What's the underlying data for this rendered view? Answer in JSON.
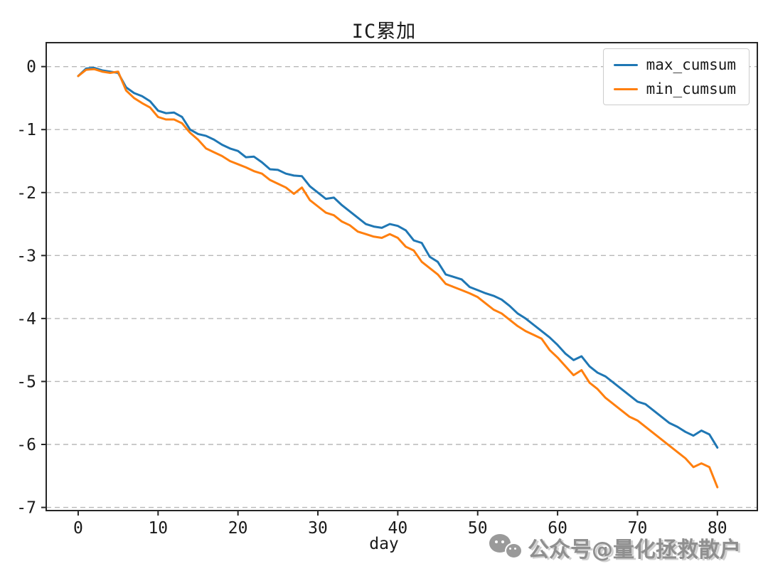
{
  "page": {
    "background": "#ffffff"
  },
  "watermark": {
    "icon": "wechat-icon",
    "text": "公众号@量化拯救散户",
    "color": "#8f8f8f"
  },
  "chart_data": {
    "type": "line",
    "title": "IC累加",
    "xlabel": "day",
    "ylabel": "",
    "grid": "horizontal-dashed",
    "grid_color": "#b8b8b8",
    "axis_color": "#262626",
    "xlim": [
      -4,
      85
    ],
    "ylim": [
      -7.05,
      0.38
    ],
    "x_ticks": [
      0,
      10,
      20,
      30,
      40,
      50,
      60,
      70,
      80
    ],
    "y_ticks": [
      0,
      -1,
      -2,
      -3,
      -4,
      -5,
      -6,
      -7
    ],
    "legend": {
      "position": "top-right",
      "entries": [
        {
          "label": "max_cumsum",
          "color": "#1f77b4"
        },
        {
          "label": "min_cumsum",
          "color": "#ff7f0e"
        }
      ]
    },
    "x": [
      0,
      1,
      2,
      3,
      4,
      5,
      6,
      7,
      8,
      9,
      10,
      11,
      12,
      13,
      14,
      15,
      16,
      17,
      18,
      19,
      20,
      21,
      22,
      23,
      24,
      25,
      26,
      27,
      28,
      29,
      30,
      31,
      32,
      33,
      34,
      35,
      36,
      37,
      38,
      39,
      40,
      41,
      42,
      43,
      44,
      45,
      46,
      47,
      48,
      49,
      50,
      51,
      52,
      53,
      54,
      55,
      56,
      57,
      58,
      59,
      60,
      61,
      62,
      63,
      64,
      65,
      66,
      67,
      68,
      69,
      70,
      71,
      72,
      73,
      74,
      75,
      76,
      77,
      78,
      79,
      80
    ],
    "series": [
      {
        "name": "max_cumsum",
        "color": "#1f77b4",
        "values": [
          -0.15,
          -0.03,
          -0.02,
          -0.06,
          -0.08,
          -0.1,
          -0.33,
          -0.42,
          -0.47,
          -0.55,
          -0.7,
          -0.74,
          -0.73,
          -0.8,
          -1.0,
          -1.07,
          -1.1,
          -1.16,
          -1.24,
          -1.3,
          -1.34,
          -1.44,
          -1.43,
          -1.52,
          -1.63,
          -1.64,
          -1.7,
          -1.73,
          -1.74,
          -1.9,
          -2.0,
          -2.1,
          -2.08,
          -2.2,
          -2.3,
          -2.4,
          -2.5,
          -2.54,
          -2.56,
          -2.5,
          -2.53,
          -2.6,
          -2.76,
          -2.8,
          -3.02,
          -3.1,
          -3.3,
          -3.34,
          -3.38,
          -3.5,
          -3.55,
          -3.6,
          -3.64,
          -3.7,
          -3.8,
          -3.92,
          -4.0,
          -4.1,
          -4.2,
          -4.3,
          -4.42,
          -4.56,
          -4.66,
          -4.6,
          -4.76,
          -4.86,
          -4.92,
          -5.02,
          -5.12,
          -5.22,
          -5.32,
          -5.36,
          -5.46,
          -5.56,
          -5.66,
          -5.72,
          -5.8,
          -5.86,
          -5.78,
          -5.84,
          -6.05
        ]
      },
      {
        "name": "min_cumsum",
        "color": "#ff7f0e",
        "values": [
          -0.15,
          -0.05,
          -0.04,
          -0.08,
          -0.1,
          -0.08,
          -0.38,
          -0.5,
          -0.58,
          -0.65,
          -0.8,
          -0.84,
          -0.84,
          -0.9,
          -1.05,
          -1.16,
          -1.3,
          -1.36,
          -1.42,
          -1.5,
          -1.55,
          -1.6,
          -1.66,
          -1.7,
          -1.8,
          -1.86,
          -1.92,
          -2.02,
          -1.92,
          -2.12,
          -2.22,
          -2.32,
          -2.36,
          -2.46,
          -2.52,
          -2.62,
          -2.66,
          -2.7,
          -2.72,
          -2.66,
          -2.72,
          -2.86,
          -2.92,
          -3.1,
          -3.2,
          -3.3,
          -3.45,
          -3.5,
          -3.55,
          -3.6,
          -3.66,
          -3.76,
          -3.86,
          -3.92,
          -4.02,
          -4.12,
          -4.2,
          -4.26,
          -4.32,
          -4.5,
          -4.62,
          -4.76,
          -4.9,
          -4.82,
          -5.02,
          -5.12,
          -5.26,
          -5.36,
          -5.46,
          -5.56,
          -5.62,
          -5.72,
          -5.82,
          -5.92,
          -6.02,
          -6.12,
          -6.22,
          -6.36,
          -6.3,
          -6.36,
          -6.68
        ]
      }
    ]
  }
}
